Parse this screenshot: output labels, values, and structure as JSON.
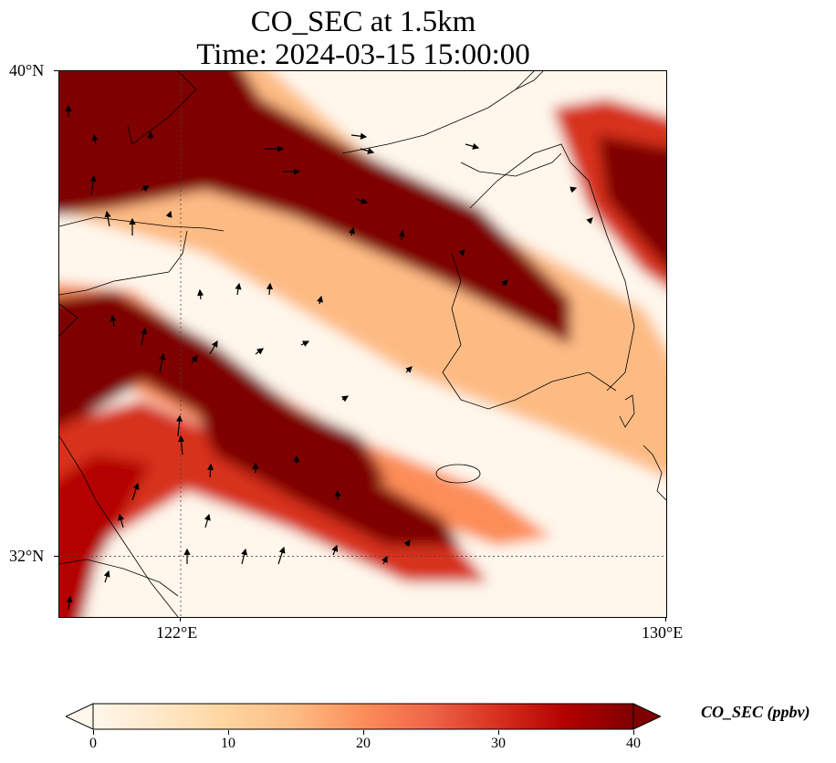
{
  "title_line1": "CO_SEC at 1.5km",
  "title_line2": "Time: 2024-03-15 15:00:00",
  "map": {
    "lon_range": [
      120,
      130
    ],
    "lat_range": [
      31,
      40
    ],
    "lat_ticks": [
      {
        "value": 40,
        "label": "40°N"
      },
      {
        "value": 32,
        "label": "32°N"
      }
    ],
    "lon_ticks": [
      {
        "value": 122,
        "label": "122°E"
      },
      {
        "value": 130,
        "label": "130°E"
      }
    ],
    "gridlines": "dotted",
    "overlay": "wind vectors (black arrows)",
    "coastlines": true
  },
  "colorbar": {
    "label": "CO_SEC (ppbv)",
    "min": 0,
    "max": 40,
    "ticks": [
      "0",
      "10",
      "20",
      "30",
      "40"
    ],
    "colormap": "OrRd",
    "extend": "both",
    "colors": [
      "#fff7ec",
      "#fee8c8",
      "#fdd49e",
      "#fdbb84",
      "#fc8d59",
      "#ef6548",
      "#d7301f",
      "#b30000",
      "#7f0000"
    ]
  }
}
